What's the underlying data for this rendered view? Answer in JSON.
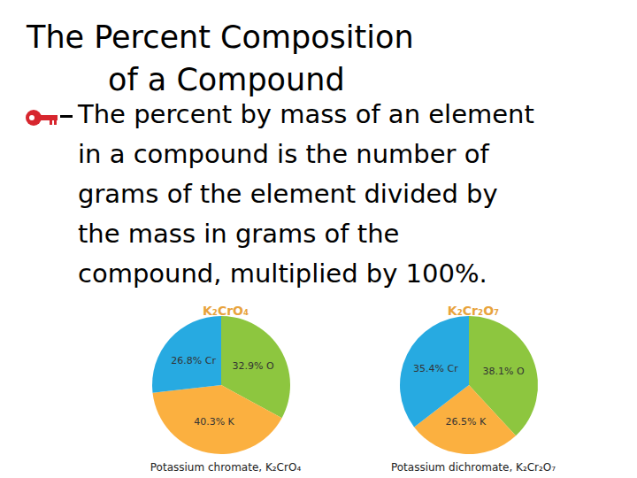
{
  "slide": {
    "title": [
      "The Percent Composition",
      "of a Compound"
    ],
    "text_lines": [
      "The percent by mass of an element",
      "in a compound is the number of",
      "grams of the element divided by",
      "the mass in grams of the",
      "compound, multiplied by 100%."
    ]
  },
  "chart_data": [
    {
      "type": "pie",
      "title": "K₂CrO₄",
      "subtitle": "Potassium chromate, K₂CrO₄",
      "categories": [
        "O",
        "K",
        "Cr"
      ],
      "values": [
        32.9,
        40.3,
        26.8
      ],
      "value_labels": [
        "32.9% O",
        "40.3% K",
        "26.8% Cr"
      ],
      "colors": [
        "#8dc63f",
        "#fbb040",
        "#27aae1"
      ],
      "data_labels": true
    },
    {
      "type": "pie",
      "title": "K₂Cr₂O₇",
      "subtitle": "Potassium dichromate, K₂Cr₂O₇",
      "categories": [
        "O",
        "K",
        "Cr"
      ],
      "values": [
        38.1,
        26.5,
        35.4
      ],
      "value_labels": [
        "38.1% O",
        "26.5% K",
        "35.4% Cr"
      ],
      "colors": [
        "#8dc63f",
        "#fbb040",
        "#27aae1"
      ],
      "data_labels": true
    }
  ]
}
